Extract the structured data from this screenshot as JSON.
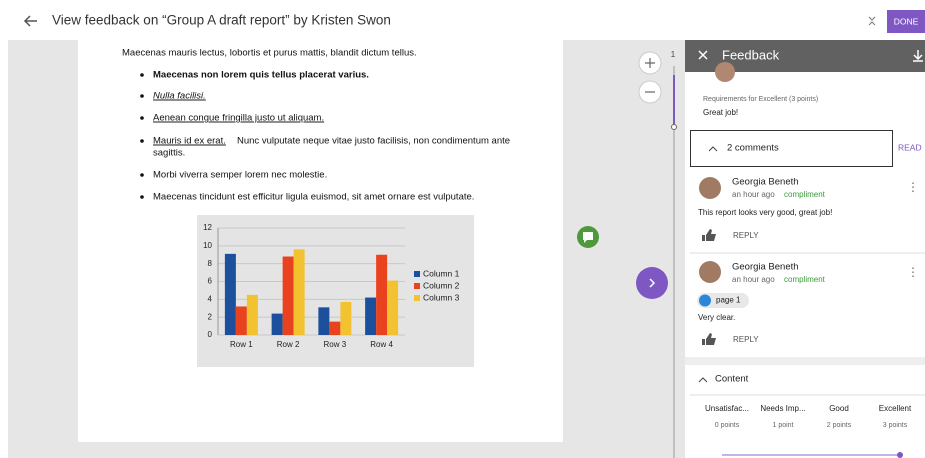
{
  "header": {
    "title": "View feedback on “Group A draft report” by Kristen Swon",
    "done": "DONE"
  },
  "document": {
    "intro": "Maecenas mauris lectus, lobortis et purus mattis, blandit dictum tellus.",
    "bullets": [
      "Maecenas non lorem quis tellus placerat varius.",
      "Nulla facilisi.",
      "Aenean congue fringilla justo ut aliquam.",
      "Mauris id ex erat.",
      "Nunc vulputate neque vitae justo facilisis, non condimentum ante",
      "sagittis.",
      "Morbi viverra semper lorem nec molestie.",
      "Maecenas tincidunt est efficitur ligula euismod, sit amet ornare est vulputate."
    ],
    "page_number": "1"
  },
  "chart_data": {
    "type": "bar",
    "categories": [
      "Row 1",
      "Row 2",
      "Row 3",
      "Row 4"
    ],
    "series": [
      {
        "name": "Column 1",
        "color": "#1c4f9c",
        "values": [
          9.1,
          2.4,
          3.1,
          4.2
        ]
      },
      {
        "name": "Column 2",
        "color": "#e8431e",
        "values": [
          3.2,
          8.8,
          1.5,
          9.0
        ]
      },
      {
        "name": "Column 3",
        "color": "#f2c230",
        "values": [
          4.5,
          9.6,
          3.7,
          6.1
        ]
      }
    ],
    "ylim": [
      0,
      12
    ],
    "yticks": [
      0,
      2,
      4,
      6,
      8,
      10,
      12
    ],
    "grid": true,
    "legend": "right"
  },
  "panel": {
    "title": "Feedback",
    "requirement": "Requirements for Excellent (3 points)",
    "requirement_comment": "Great job!",
    "comments_toggle": "2 comments",
    "read": "READ",
    "comments": [
      {
        "author": "Georgia Beneth",
        "time": "an hour ago",
        "tag": "compliment",
        "text": "This report looks very good, great job!",
        "reply": "REPLY"
      },
      {
        "author": "Georgia Beneth",
        "time": "an hour ago",
        "tag": "compliment",
        "page": "page 1",
        "text": "Very clear.",
        "reply": "REPLY"
      }
    ],
    "section": "Content",
    "levels": [
      {
        "name": "Unsatisfac...",
        "points": "0 points"
      },
      {
        "name": "Needs Imp...",
        "points": "1 point"
      },
      {
        "name": "Good",
        "points": "2 points"
      },
      {
        "name": "Excellent",
        "points": "3 points"
      }
    ]
  }
}
